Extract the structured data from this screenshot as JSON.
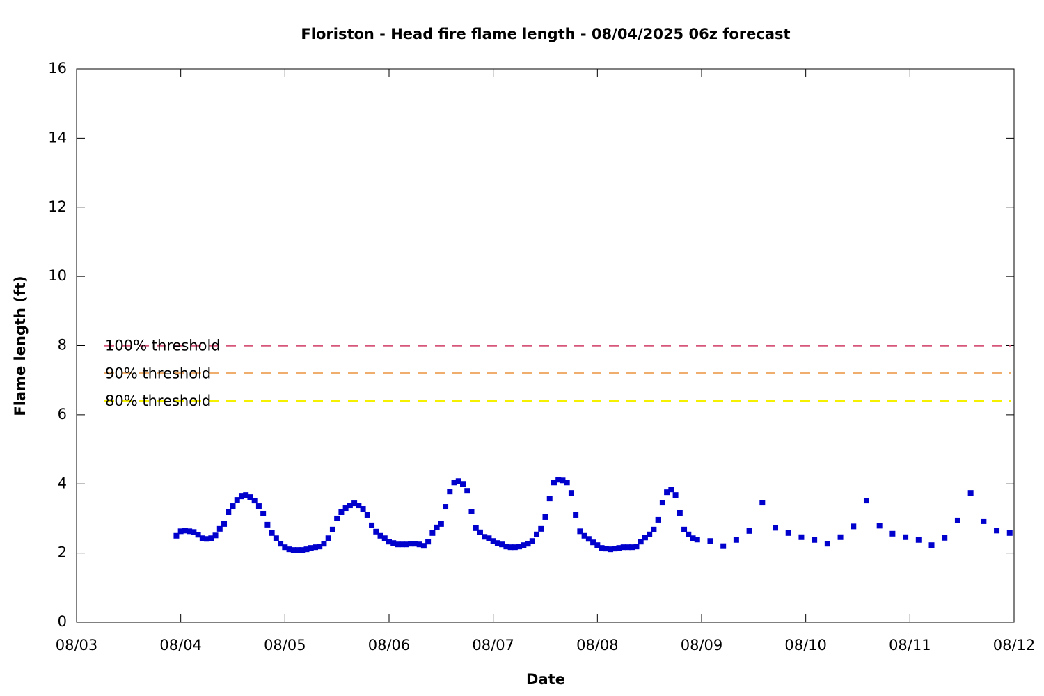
{
  "chart_data": {
    "type": "scatter",
    "title": "Floriston - Head fire flame length - 08/04/2025 06z forecast",
    "x_label": "Date",
    "y_label": "Flame length (ft)",
    "xlim": [
      0,
      216
    ],
    "ylim": [
      0,
      16
    ],
    "xticks": [
      {
        "value": 0,
        "label": "08/03"
      },
      {
        "value": 24,
        "label": "08/04"
      },
      {
        "value": 48,
        "label": "08/05"
      },
      {
        "value": 72,
        "label": "08/06"
      },
      {
        "value": 96,
        "label": "08/07"
      },
      {
        "value": 120,
        "label": "08/08"
      },
      {
        "value": 144,
        "label": "08/09"
      },
      {
        "value": 168,
        "label": "08/10"
      },
      {
        "value": 192,
        "label": "08/11"
      },
      {
        "value": 216,
        "label": "08/12"
      }
    ],
    "yticks": [
      0,
      2,
      4,
      6,
      8,
      10,
      12,
      14,
      16
    ],
    "grid": false,
    "color": "#0000cd",
    "x": [
      23,
      24,
      25,
      26,
      27,
      28,
      29,
      30,
      31,
      32,
      33,
      34,
      35,
      36,
      37,
      38,
      39,
      40,
      41,
      42,
      43,
      44,
      45,
      46,
      47,
      48,
      49,
      50,
      51,
      52,
      53,
      54,
      55,
      56,
      57,
      58,
      59,
      60,
      61,
      62,
      63,
      64,
      65,
      66,
      67,
      68,
      69,
      70,
      71,
      72,
      73,
      74,
      75,
      76,
      77,
      78,
      79,
      80,
      81,
      82,
      83,
      84,
      85,
      86,
      87,
      88,
      89,
      90,
      91,
      92,
      93,
      94,
      95,
      96,
      97,
      98,
      99,
      100,
      101,
      102,
      103,
      104,
      105,
      106,
      107,
      108,
      109,
      110,
      111,
      112,
      113,
      114,
      115,
      116,
      117,
      118,
      119,
      120,
      121,
      122,
      123,
      124,
      125,
      126,
      127,
      128,
      129,
      130,
      131,
      132,
      133,
      134,
      135,
      136,
      137,
      138,
      139,
      140,
      141,
      142,
      143,
      146,
      149,
      152,
      155,
      158,
      161,
      164,
      167,
      170,
      173,
      176,
      179,
      182,
      185,
      188,
      191,
      194,
      197,
      200,
      203,
      206,
      209,
      212,
      215
    ],
    "values": [
      2.5,
      2.63,
      2.65,
      2.63,
      2.61,
      2.53,
      2.43,
      2.41,
      2.43,
      2.51,
      2.7,
      2.84,
      3.18,
      3.36,
      3.54,
      3.64,
      3.68,
      3.62,
      3.52,
      3.36,
      3.14,
      2.82,
      2.58,
      2.43,
      2.27,
      2.17,
      2.11,
      2.09,
      2.09,
      2.09,
      2.11,
      2.15,
      2.17,
      2.19,
      2.27,
      2.43,
      2.68,
      3.0,
      3.18,
      3.3,
      3.38,
      3.44,
      3.38,
      3.28,
      3.1,
      2.8,
      2.62,
      2.5,
      2.43,
      2.33,
      2.29,
      2.25,
      2.25,
      2.25,
      2.27,
      2.27,
      2.25,
      2.21,
      2.33,
      2.58,
      2.74,
      2.84,
      3.34,
      3.78,
      4.04,
      4.08,
      4.0,
      3.8,
      3.2,
      2.72,
      2.6,
      2.47,
      2.43,
      2.35,
      2.29,
      2.25,
      2.19,
      2.17,
      2.17,
      2.19,
      2.23,
      2.27,
      2.35,
      2.54,
      2.7,
      3.04,
      3.58,
      4.04,
      4.12,
      4.1,
      4.04,
      3.74,
      3.1,
      2.63,
      2.5,
      2.41,
      2.31,
      2.23,
      2.15,
      2.13,
      2.11,
      2.13,
      2.15,
      2.17,
      2.17,
      2.17,
      2.19,
      2.33,
      2.45,
      2.54,
      2.68,
      2.96,
      3.46,
      3.76,
      3.84,
      3.68,
      3.16,
      2.68,
      2.54,
      2.43,
      2.39,
      2.35,
      2.2,
      2.38,
      2.64,
      3.46,
      2.73,
      2.58,
      2.46,
      2.38,
      2.27,
      2.46,
      2.77,
      3.52,
      2.79,
      2.56,
      2.46,
      2.38,
      2.23,
      2.44,
      2.94,
      3.74,
      2.92,
      2.65,
      2.58
    ],
    "thresholds": [
      {
        "name": "100% threshold",
        "value": 8,
        "color": "#d6577a"
      },
      {
        "name": "90% threshold",
        "value": 7.2,
        "color": "#f0ae6e"
      },
      {
        "name": "80% threshold",
        "value": 6.4,
        "color": "#f5f000"
      }
    ]
  }
}
